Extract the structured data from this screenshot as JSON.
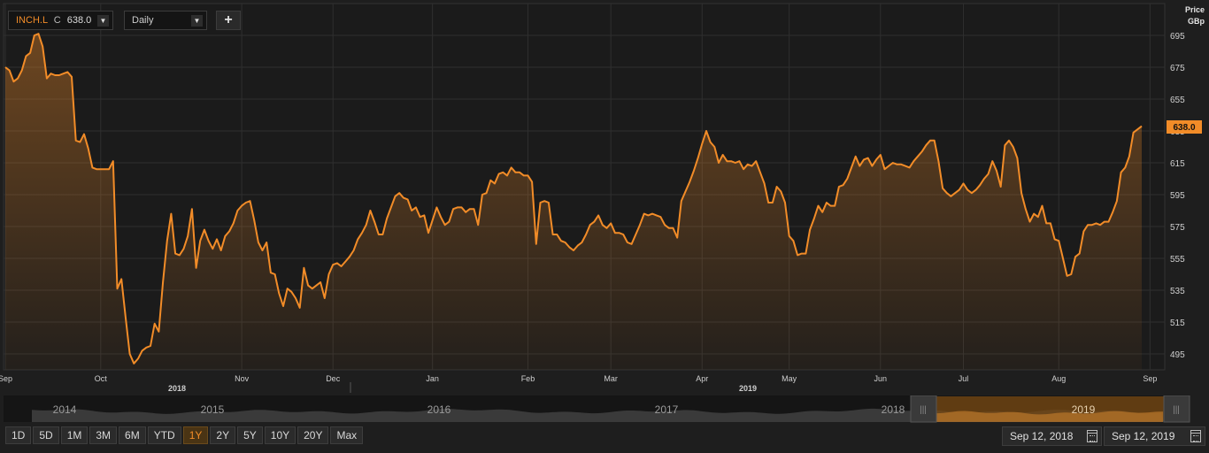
{
  "toolbar": {
    "symbol": "INCH.L",
    "close_prefix": "C",
    "close_value": "638.0",
    "interval": "Daily",
    "add_icon": "plus-icon",
    "dropdown_icon": "triangle-down-icon"
  },
  "axis": {
    "unit_line1": "Price",
    "unit_line2": "GBp",
    "last_price_label": "638.0"
  },
  "chart_data": {
    "type": "area",
    "series": [
      {
        "values": [
          675,
          673,
          666,
          668,
          673,
          682,
          684,
          695,
          696,
          688,
          668,
          671,
          670,
          670,
          671,
          672,
          669,
          629,
          628,
          633,
          624,
          612,
          611,
          611,
          611,
          611,
          616,
          536,
          542,
          518,
          495,
          489,
          492,
          497,
          499,
          500,
          514,
          509,
          540,
          566,
          583,
          558,
          557,
          561,
          569,
          586,
          549,
          566,
          573,
          566,
          561,
          567,
          560,
          569,
          572,
          577,
          585,
          588,
          590,
          591,
          579,
          565,
          560,
          565,
          546,
          545,
          533,
          525,
          536,
          534,
          530,
          524,
          549,
          538,
          536,
          538,
          540,
          530,
          545,
          551,
          552,
          550,
          553,
          556,
          560,
          567,
          571,
          576,
          585,
          578,
          570,
          570,
          580,
          587,
          594,
          596,
          593,
          592,
          585,
          587,
          581,
          582,
          571,
          579,
          587,
          581,
          576,
          578,
          586,
          587,
          587,
          584,
          586,
          586,
          576,
          595,
          596,
          604,
          602,
          608,
          609,
          607,
          612,
          609,
          609,
          607,
          607,
          603,
          564,
          590,
          591,
          590,
          570,
          570,
          566,
          565,
          562,
          560,
          563,
          565,
          570,
          576,
          578,
          582,
          576,
          574,
          577,
          571,
          571,
          570,
          565,
          564,
          570,
          576,
          583,
          582,
          583,
          582,
          581,
          576,
          574,
          574,
          568,
          591,
          597,
          603,
          610,
          618,
          627,
          635,
          628,
          625,
          615,
          620,
          616,
          616,
          615,
          616,
          611,
          614,
          613,
          616,
          609,
          602,
          590,
          590,
          600,
          597,
          590,
          569,
          566,
          557,
          558,
          558,
          573,
          580,
          588,
          584,
          590,
          588,
          588,
          600,
          601,
          605,
          612,
          619,
          613,
          617,
          618,
          613,
          617,
          620,
          611,
          613,
          615,
          614,
          614,
          613,
          612,
          616,
          619,
          622,
          626,
          629,
          629,
          616,
          599,
          596,
          594,
          596,
          598,
          602,
          598,
          596,
          598,
          601,
          605,
          608,
          616,
          610,
          600,
          626,
          629,
          625,
          618,
          596,
          586,
          578,
          583,
          581,
          588,
          577,
          577,
          567,
          566,
          555,
          544,
          545,
          556,
          558,
          572,
          576,
          576,
          577,
          576,
          578,
          578,
          584,
          591,
          609,
          612,
          619,
          634,
          636,
          638
        ]
      }
    ],
    "x_ticks": [
      "Sep",
      "Oct",
      "Nov",
      "Dec",
      "Jan",
      "Feb",
      "Mar",
      "Apr",
      "May",
      "Jun",
      "Jul",
      "Aug",
      "Sep"
    ],
    "year_labels": [
      "2018",
      "2019"
    ],
    "y_ticks": [
      495,
      515,
      535,
      555,
      575,
      595,
      615,
      635,
      655,
      675,
      695
    ],
    "ylim": [
      485,
      715
    ],
    "grid": true,
    "line_color": "#f28c28"
  },
  "navigator": {
    "years": [
      "2014",
      "2015",
      "2016",
      "2017",
      "2018",
      "2019"
    ],
    "handle_icon": "grip-icon"
  },
  "ranges": {
    "buttons": [
      "1D",
      "5D",
      "1M",
      "3M",
      "6M",
      "YTD",
      "1Y",
      "2Y",
      "5Y",
      "10Y",
      "20Y",
      "Max"
    ],
    "active": "1Y"
  },
  "dates": {
    "start": "Sep 12, 2018",
    "end": "Sep 12, 2019",
    "calendar_icon": "calendar-icon"
  }
}
